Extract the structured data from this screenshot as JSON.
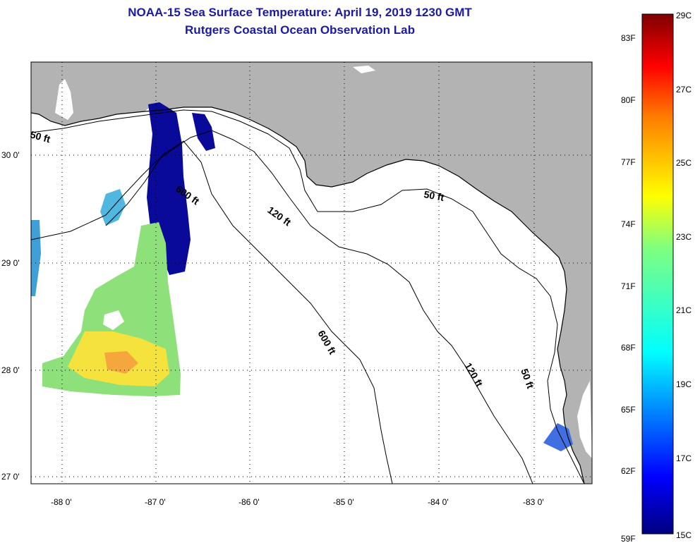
{
  "title": {
    "line1": "NOAA-15 Sea Surface Temperature:  April 19, 2019 1230 GMT",
    "line2": "Rutgers Coastal Ocean Observation Lab"
  },
  "map": {
    "lon_labels": [
      "-88 0'",
      "-87 0'",
      "-86 0'",
      "-85 0'",
      "-84 0'",
      "-83 0'"
    ],
    "lat_labels": [
      "30 0'",
      "29 0'",
      "28 0'",
      "27 0'"
    ],
    "depth_labels": [
      "50 ft",
      "600 ft",
      "120 ft",
      "50 ft",
      "600 ft",
      "120 ft",
      "50 ft"
    ],
    "colors": {
      "land": "#b3b3b3",
      "ocean": "#ffffff",
      "contour": "#000000"
    }
  },
  "colorbar": {
    "fahrenheit": [
      "83F",
      "80F",
      "77F",
      "74F",
      "71F",
      "68F",
      "65F",
      "62F",
      "59F"
    ],
    "celsius": [
      "29C",
      "27C",
      "25C",
      "23C",
      "21C",
      "19C",
      "17C",
      "15C"
    ],
    "gradient": [
      "#00007f",
      "#0000ff",
      "#007fff",
      "#00ffff",
      "#7fff7f",
      "#ffff00",
      "#ff7f00",
      "#ff0000",
      "#7f0000"
    ]
  }
}
